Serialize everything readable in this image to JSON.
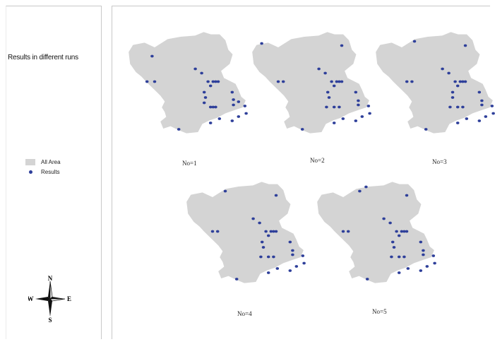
{
  "side_title": "Results in different runs",
  "legend": {
    "area_label": "All Area",
    "results_label": "Results"
  },
  "compass": {
    "n": "N",
    "s": "S",
    "e": "E",
    "w": "W"
  },
  "colors": {
    "area": "#d4d4d4",
    "result_dot": "#2e3f9a"
  },
  "runs": [
    {
      "label": "No=1",
      "points": [
        [
          0.23,
          0.25
        ],
        [
          0.19,
          0.49
        ],
        [
          0.25,
          0.49
        ],
        [
          0.57,
          0.37
        ],
        [
          0.62,
          0.41
        ],
        [
          0.67,
          0.49
        ],
        [
          0.71,
          0.49
        ],
        [
          0.73,
          0.49
        ],
        [
          0.75,
          0.49
        ],
        [
          0.69,
          0.53
        ],
        [
          0.64,
          0.59
        ],
        [
          0.65,
          0.64
        ],
        [
          0.69,
          0.73
        ],
        [
          0.71,
          0.73
        ],
        [
          0.73,
          0.73
        ],
        [
          0.86,
          0.59
        ],
        [
          0.87,
          0.66
        ],
        [
          0.87,
          0.71
        ],
        [
          0.91,
          0.68
        ],
        [
          0.96,
          0.72
        ],
        [
          0.97,
          0.79
        ],
        [
          0.91,
          0.82
        ],
        [
          0.86,
          0.86
        ],
        [
          0.76,
          0.84
        ],
        [
          0.69,
          0.88
        ],
        [
          0.44,
          0.94
        ],
        [
          0.64,
          0.69
        ]
      ]
    },
    {
      "label": "No=2",
      "points": [
        [
          0.12,
          0.13
        ],
        [
          0.75,
          0.15
        ],
        [
          0.57,
          0.37
        ],
        [
          0.62,
          0.41
        ],
        [
          0.25,
          0.49
        ],
        [
          0.29,
          0.49
        ],
        [
          0.67,
          0.49
        ],
        [
          0.71,
          0.49
        ],
        [
          0.73,
          0.49
        ],
        [
          0.75,
          0.49
        ],
        [
          0.69,
          0.53
        ],
        [
          0.64,
          0.59
        ],
        [
          0.65,
          0.64
        ],
        [
          0.69,
          0.73
        ],
        [
          0.73,
          0.73
        ],
        [
          0.63,
          0.73
        ],
        [
          0.86,
          0.59
        ],
        [
          0.88,
          0.67
        ],
        [
          0.88,
          0.71
        ],
        [
          0.96,
          0.72
        ],
        [
          0.97,
          0.79
        ],
        [
          0.91,
          0.82
        ],
        [
          0.86,
          0.86
        ],
        [
          0.76,
          0.84
        ],
        [
          0.69,
          0.88
        ],
        [
          0.44,
          0.94
        ]
      ]
    },
    {
      "label": "No=3",
      "points": [
        [
          0.35,
          0.11
        ],
        [
          0.75,
          0.15
        ],
        [
          0.57,
          0.37
        ],
        [
          0.62,
          0.41
        ],
        [
          0.29,
          0.49
        ],
        [
          0.33,
          0.49
        ],
        [
          0.67,
          0.49
        ],
        [
          0.71,
          0.49
        ],
        [
          0.73,
          0.49
        ],
        [
          0.75,
          0.49
        ],
        [
          0.69,
          0.53
        ],
        [
          0.65,
          0.59
        ],
        [
          0.65,
          0.64
        ],
        [
          0.69,
          0.73
        ],
        [
          0.73,
          0.73
        ],
        [
          0.63,
          0.73
        ],
        [
          0.86,
          0.59
        ],
        [
          0.88,
          0.67
        ],
        [
          0.88,
          0.71
        ],
        [
          0.96,
          0.72
        ],
        [
          0.97,
          0.79
        ],
        [
          0.91,
          0.82
        ],
        [
          0.86,
          0.86
        ],
        [
          0.76,
          0.84
        ],
        [
          0.69,
          0.88
        ],
        [
          0.44,
          0.94
        ]
      ]
    },
    {
      "label": "No=4",
      "points": [
        [
          0.35,
          0.11
        ],
        [
          0.75,
          0.15
        ],
        [
          0.57,
          0.37
        ],
        [
          0.62,
          0.41
        ],
        [
          0.25,
          0.49
        ],
        [
          0.29,
          0.49
        ],
        [
          0.67,
          0.49
        ],
        [
          0.71,
          0.49
        ],
        [
          0.73,
          0.49
        ],
        [
          0.75,
          0.49
        ],
        [
          0.69,
          0.53
        ],
        [
          0.64,
          0.59
        ],
        [
          0.65,
          0.64
        ],
        [
          0.69,
          0.73
        ],
        [
          0.73,
          0.73
        ],
        [
          0.63,
          0.73
        ],
        [
          0.86,
          0.59
        ],
        [
          0.88,
          0.67
        ],
        [
          0.88,
          0.71
        ],
        [
          0.96,
          0.72
        ],
        [
          0.97,
          0.79
        ],
        [
          0.91,
          0.82
        ],
        [
          0.86,
          0.86
        ],
        [
          0.76,
          0.84
        ],
        [
          0.69,
          0.88
        ],
        [
          0.44,
          0.94
        ]
      ]
    },
    {
      "label": "No=5",
      "points": [
        [
          0.38,
          0.11
        ],
        [
          0.43,
          0.07
        ],
        [
          0.75,
          0.15
        ],
        [
          0.57,
          0.37
        ],
        [
          0.62,
          0.41
        ],
        [
          0.25,
          0.49
        ],
        [
          0.29,
          0.49
        ],
        [
          0.67,
          0.49
        ],
        [
          0.71,
          0.49
        ],
        [
          0.73,
          0.49
        ],
        [
          0.75,
          0.49
        ],
        [
          0.69,
          0.53
        ],
        [
          0.64,
          0.59
        ],
        [
          0.65,
          0.64
        ],
        [
          0.69,
          0.73
        ],
        [
          0.73,
          0.73
        ],
        [
          0.63,
          0.73
        ],
        [
          0.86,
          0.59
        ],
        [
          0.88,
          0.67
        ],
        [
          0.88,
          0.71
        ],
        [
          0.96,
          0.72
        ],
        [
          0.97,
          0.79
        ],
        [
          0.91,
          0.82
        ],
        [
          0.86,
          0.86
        ],
        [
          0.76,
          0.84
        ],
        [
          0.69,
          0.88
        ],
        [
          0.44,
          0.94
        ]
      ]
    }
  ]
}
